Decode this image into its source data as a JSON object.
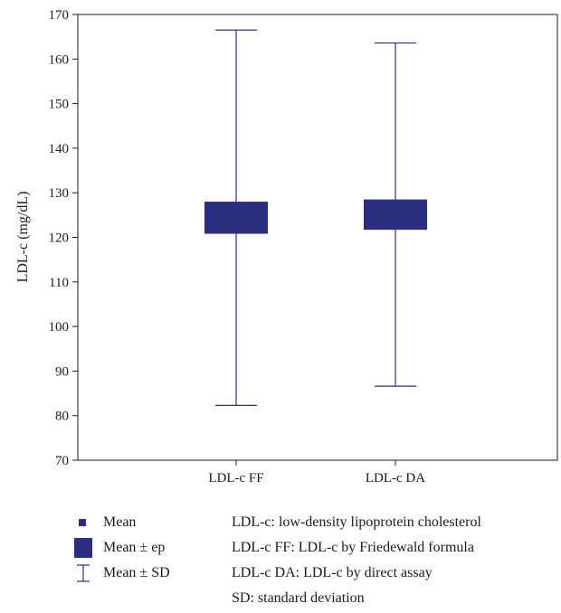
{
  "chart_data": {
    "type": "box",
    "ylabel": "LDL-c (mg/dL)",
    "ylim": [
      70,
      170
    ],
    "yticks": [
      70,
      80,
      90,
      100,
      110,
      120,
      130,
      140,
      150,
      160,
      170
    ],
    "categories": [
      "LDL-c FF",
      "LDL-c DA"
    ],
    "series": [
      {
        "category": "LDL-c FF",
        "mean": 124.4,
        "ep_low": 120.8,
        "ep_high": 128.0,
        "sd_low": 82.3,
        "sd_high": 166.5
      },
      {
        "category": "LDL-c DA",
        "mean": 125.1,
        "ep_low": 121.7,
        "ep_high": 128.5,
        "sd_low": 86.6,
        "sd_high": 163.6
      }
    ],
    "grid": false,
    "legend_position": "bottom"
  },
  "colors": {
    "series": "#2b2f7f"
  },
  "legend": {
    "items": [
      {
        "symbol": "mean-square-icon",
        "label": "Mean"
      },
      {
        "symbol": "mean-ep-box-icon",
        "label": "Mean ± ep"
      },
      {
        "symbol": "mean-sd-whisker-icon",
        "label": "Mean ± SD"
      }
    ],
    "notes": [
      "LDL-c: low-density lipoprotein cholesterol",
      "LDL-c FF: LDL-c by Friedewald formula",
      "LDL-c DA: LDL-c by direct assay",
      "SD: standard deviation"
    ]
  }
}
